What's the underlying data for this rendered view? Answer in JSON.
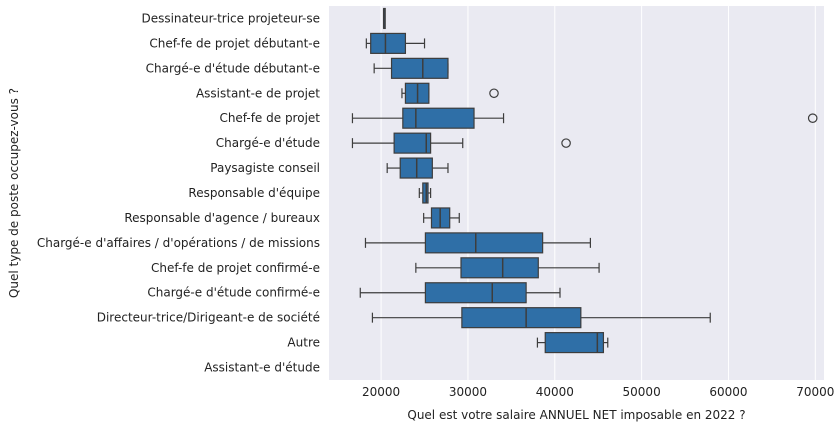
{
  "chart_data": {
    "type": "boxplot",
    "orientation": "horizontal",
    "xlabel": "Quel est votre salaire ANNUEL NET imposable en 2022 ?",
    "ylabel": "Quel type de poste occupez-vous ?",
    "xlim": [
      14000,
      71000
    ],
    "xticks": [
      20000,
      30000,
      40000,
      50000,
      60000,
      70000
    ],
    "xtick_labels": [
      "20000",
      "30000",
      "40000",
      "50000",
      "60000",
      "70000"
    ],
    "grid": true,
    "box_color": "#2f6fa7",
    "plot_background": "#eaeaf2",
    "categories": [
      {
        "name": "Dessinateur-trice projeteur-se",
        "whisker_low": 20300,
        "q1": 20300,
        "median": 20300,
        "q3": 20300,
        "whisker_high": 20300,
        "outliers": []
      },
      {
        "name": "Chef-fe de projet débutant-e",
        "whisker_low": 18300,
        "q1": 18800,
        "median": 20500,
        "q3": 22800,
        "whisker_high": 25000,
        "outliers": []
      },
      {
        "name": "Chargé-e d'étude débutant-e",
        "whisker_low": 19200,
        "q1": 21200,
        "median": 24800,
        "q3": 27700,
        "whisker_high": 27700,
        "outliers": []
      },
      {
        "name": "Assistant-e de projet",
        "whisker_low": 22400,
        "q1": 22800,
        "median": 24200,
        "q3": 25500,
        "whisker_high": 25500,
        "outliers": [
          33000
        ]
      },
      {
        "name": "Chef-fe de projet",
        "whisker_low": 16700,
        "q1": 22500,
        "median": 24000,
        "q3": 30700,
        "whisker_high": 34100,
        "outliers": [
          69700
        ]
      },
      {
        "name": "Chargé-e d'étude",
        "whisker_low": 16700,
        "q1": 21500,
        "median": 25200,
        "q3": 25700,
        "whisker_high": 29400,
        "outliers": [
          41300
        ]
      },
      {
        "name": "Paysagiste conseil",
        "whisker_low": 20700,
        "q1": 22200,
        "median": 24100,
        "q3": 25900,
        "whisker_high": 27700,
        "outliers": []
      },
      {
        "name": "Responsable d'équipe",
        "whisker_low": 24400,
        "q1": 24800,
        "median": 25200,
        "q3": 25400,
        "whisker_high": 25700,
        "outliers": []
      },
      {
        "name": "Responsable d'agence / bureaux",
        "whisker_low": 24900,
        "q1": 25800,
        "median": 26800,
        "q3": 27900,
        "whisker_high": 29000,
        "outliers": []
      },
      {
        "name": "Chargé-e d'affaires / d'opérations / de missions",
        "whisker_low": 18200,
        "q1": 25100,
        "median": 30900,
        "q3": 38600,
        "whisker_high": 44100,
        "outliers": []
      },
      {
        "name": "Chef-fe de projet confirmé-e",
        "whisker_low": 24000,
        "q1": 29200,
        "median": 34000,
        "q3": 38100,
        "whisker_high": 45100,
        "outliers": []
      },
      {
        "name": "Chargé-e d'étude confirmé-e",
        "whisker_low": 17600,
        "q1": 25100,
        "median": 32800,
        "q3": 36700,
        "whisker_high": 40600,
        "outliers": []
      },
      {
        "name": "Directeur-trice/Dirigeant-e de société",
        "whisker_low": 19000,
        "q1": 29300,
        "median": 36700,
        "q3": 43000,
        "whisker_high": 57900,
        "outliers": []
      },
      {
        "name": "Autre",
        "whisker_low": 38000,
        "q1": 38900,
        "median": 44900,
        "q3": 45600,
        "whisker_high": 46100,
        "outliers": []
      },
      {
        "name": "Assistant-e d'étude",
        "whisker_low": null,
        "q1": null,
        "median": null,
        "q3": null,
        "whisker_high": null,
        "outliers": []
      }
    ]
  }
}
